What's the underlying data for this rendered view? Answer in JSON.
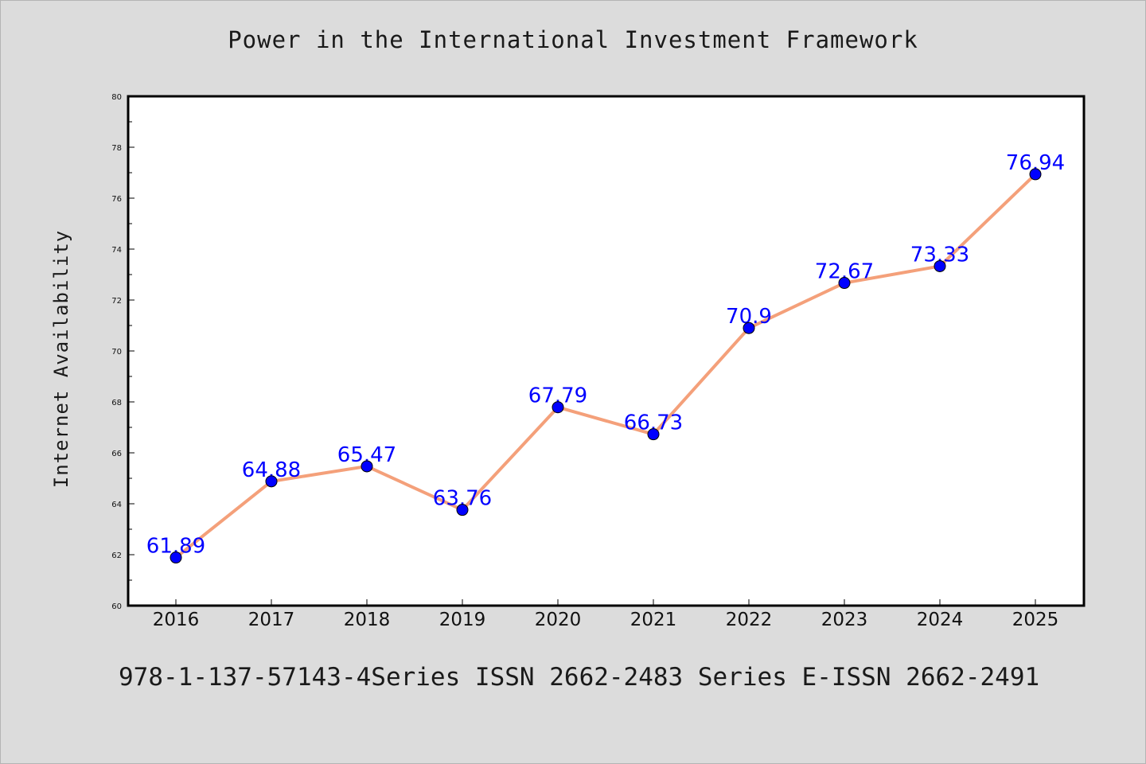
{
  "chart_data": {
    "type": "line",
    "title": "Power in the International Investment Framework",
    "xlabel": "",
    "ylabel": "Internet Availability",
    "categories": [
      "2016",
      "2017",
      "2018",
      "2019",
      "2020",
      "2021",
      "2022",
      "2023",
      "2024",
      "2025"
    ],
    "values": [
      61.89,
      64.88,
      65.47,
      63.76,
      67.79,
      66.73,
      70.9,
      72.67,
      73.33,
      76.94
    ],
    "data_labels": [
      "61.89",
      "64.88",
      "65.47",
      "63.76",
      "67.79",
      "66.73",
      "70.9",
      "72.67",
      "73.33",
      "76.94"
    ],
    "ylim": [
      60,
      80
    ],
    "yticks": [
      60,
      62,
      64,
      66,
      68,
      70,
      72,
      74,
      76,
      78,
      80
    ],
    "grid": false,
    "colors": {
      "line": "#f4a07a",
      "marker": "#0000ff",
      "label": "#0000ff",
      "background": "#dcdcdc",
      "plot_area": "#ffffff"
    }
  },
  "footer": {
    "text": "978-1-137-57143-4Series ISSN 2662-2483 Series E-ISSN 2662-2491"
  }
}
